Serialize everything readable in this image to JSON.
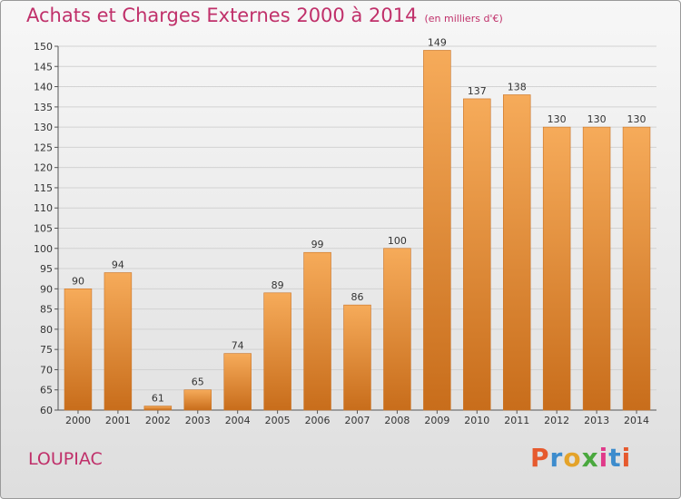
{
  "header": {
    "title": "Achats et Charges Externes 2000 à 2014",
    "unit": "(en milliers d'€)"
  },
  "footer": {
    "commune": "LOUPIAC",
    "logo_text": "Proxiti"
  },
  "colors": {
    "title": "#c0306a",
    "bar_light": "#f6ab5a",
    "bar_dark": "#c86d1b",
    "logo_letters": [
      "#e65a2e",
      "#3d8ccd",
      "#e4a32a",
      "#4aa83e",
      "#e03a8a",
      "#3d8ccd",
      "#e65a2e"
    ]
  },
  "chart_data": {
    "type": "bar",
    "title": "Achats et Charges Externes 2000 à 2014",
    "categories": [
      "2000",
      "2001",
      "2002",
      "2003",
      "2004",
      "2005",
      "2006",
      "2007",
      "2008",
      "2009",
      "2010",
      "2011",
      "2012",
      "2013",
      "2014"
    ],
    "values": [
      90,
      94,
      61,
      65,
      74,
      89,
      99,
      86,
      100,
      149,
      137,
      138,
      130,
      130,
      130
    ],
    "ylim": [
      60,
      150
    ],
    "yticks": [
      60,
      65,
      70,
      75,
      80,
      85,
      90,
      95,
      100,
      105,
      110,
      115,
      120,
      125,
      130,
      135,
      140,
      145,
      150
    ],
    "grid": true,
    "legend": "none"
  }
}
